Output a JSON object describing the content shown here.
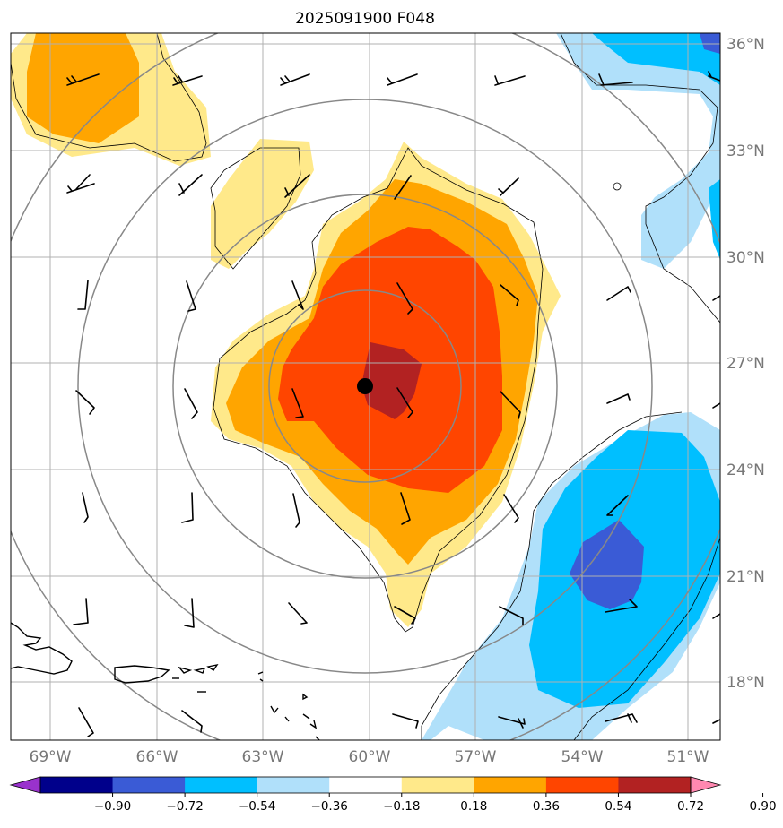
{
  "title": "2025091900 F048",
  "longitude_labels": [
    "69°W",
    "66°W",
    "63°W",
    "60°W",
    "57°W",
    "54°W",
    "51°W"
  ],
  "latitude_labels": [
    "36°N",
    "33°N",
    "30°N",
    "27°N",
    "24°N",
    "21°N",
    "18°N"
  ],
  "colorbar": {
    "ticks": [
      "−0.90",
      "−0.72",
      "−0.54",
      "−0.36",
      "−0.18",
      "0.18",
      "0.36",
      "0.54",
      "0.72",
      "0.90"
    ],
    "colors": [
      "#9932cc",
      "#00008b",
      "#3a5bd6",
      "#00bfff",
      "#b0e0fa",
      "#ffffff",
      "#ffe98a",
      "#ffa500",
      "#ff4500",
      "#b22222",
      "#ff88b0"
    ]
  },
  "map": {
    "extent_lon": [
      -70,
      -50
    ],
    "extent_lat": [
      16.5,
      36.3
    ],
    "storm_center": {
      "lon": -60.1,
      "lat": 26.3
    },
    "range_rings": "concentric circles around storm center"
  }
}
